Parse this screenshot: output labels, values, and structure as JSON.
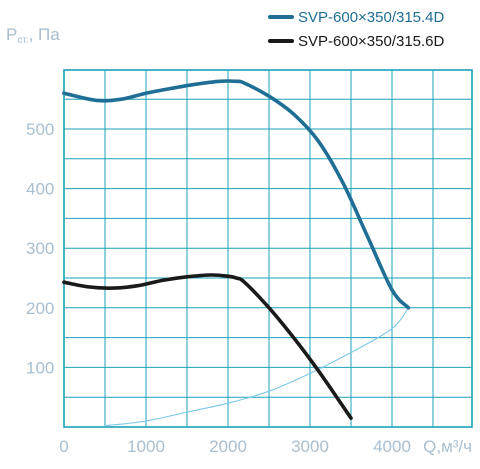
{
  "chart_data": {
    "type": "line",
    "ylabel_main": "P",
    "ylabel_sub": "ст.",
    "ylabel_unit": ", Па",
    "xlabel": "Q,м³/ч",
    "xlim": [
      0,
      5000
    ],
    "ylim": [
      0,
      600
    ],
    "x_ticks": [
      0,
      1000,
      2000,
      3000,
      4000
    ],
    "y_ticks": [
      100,
      200,
      300,
      400,
      500
    ],
    "grid": true,
    "legend_position": "top-right",
    "grid_color": "#1ba3b8",
    "series": [
      {
        "name": "SVP-600×350/315.4D",
        "color": "#1f6e96",
        "legend_text_color": "#1f6e96",
        "x": [
          0,
          400,
          700,
          1000,
          1300,
          1600,
          1900,
          2100,
          2200,
          2500,
          2800,
          3100,
          3400,
          3700,
          4000,
          4200
        ],
        "y": [
          560,
          548,
          550,
          560,
          568,
          575,
          580,
          580,
          577,
          555,
          525,
          480,
          410,
          320,
          230,
          200
        ]
      },
      {
        "name": "SVP-600×350/315.6D",
        "color": "#1a1a1a",
        "legend_text_color": "#1a1a1a",
        "x": [
          0,
          300,
          600,
          900,
          1200,
          1500,
          1800,
          2000,
          2100,
          2200,
          2500,
          2800,
          3100,
          3400,
          3500
        ],
        "y": [
          243,
          235,
          233,
          237,
          246,
          252,
          255,
          253,
          250,
          243,
          200,
          150,
          95,
          35,
          15
        ]
      },
      {
        "name": "",
        "color": "#7cc8e8",
        "x": [
          500,
          1000,
          1500,
          2000,
          2500,
          3000,
          3500,
          4000,
          4200
        ],
        "y": [
          2,
          10,
          25,
          40,
          60,
          90,
          125,
          165,
          200
        ]
      }
    ]
  }
}
